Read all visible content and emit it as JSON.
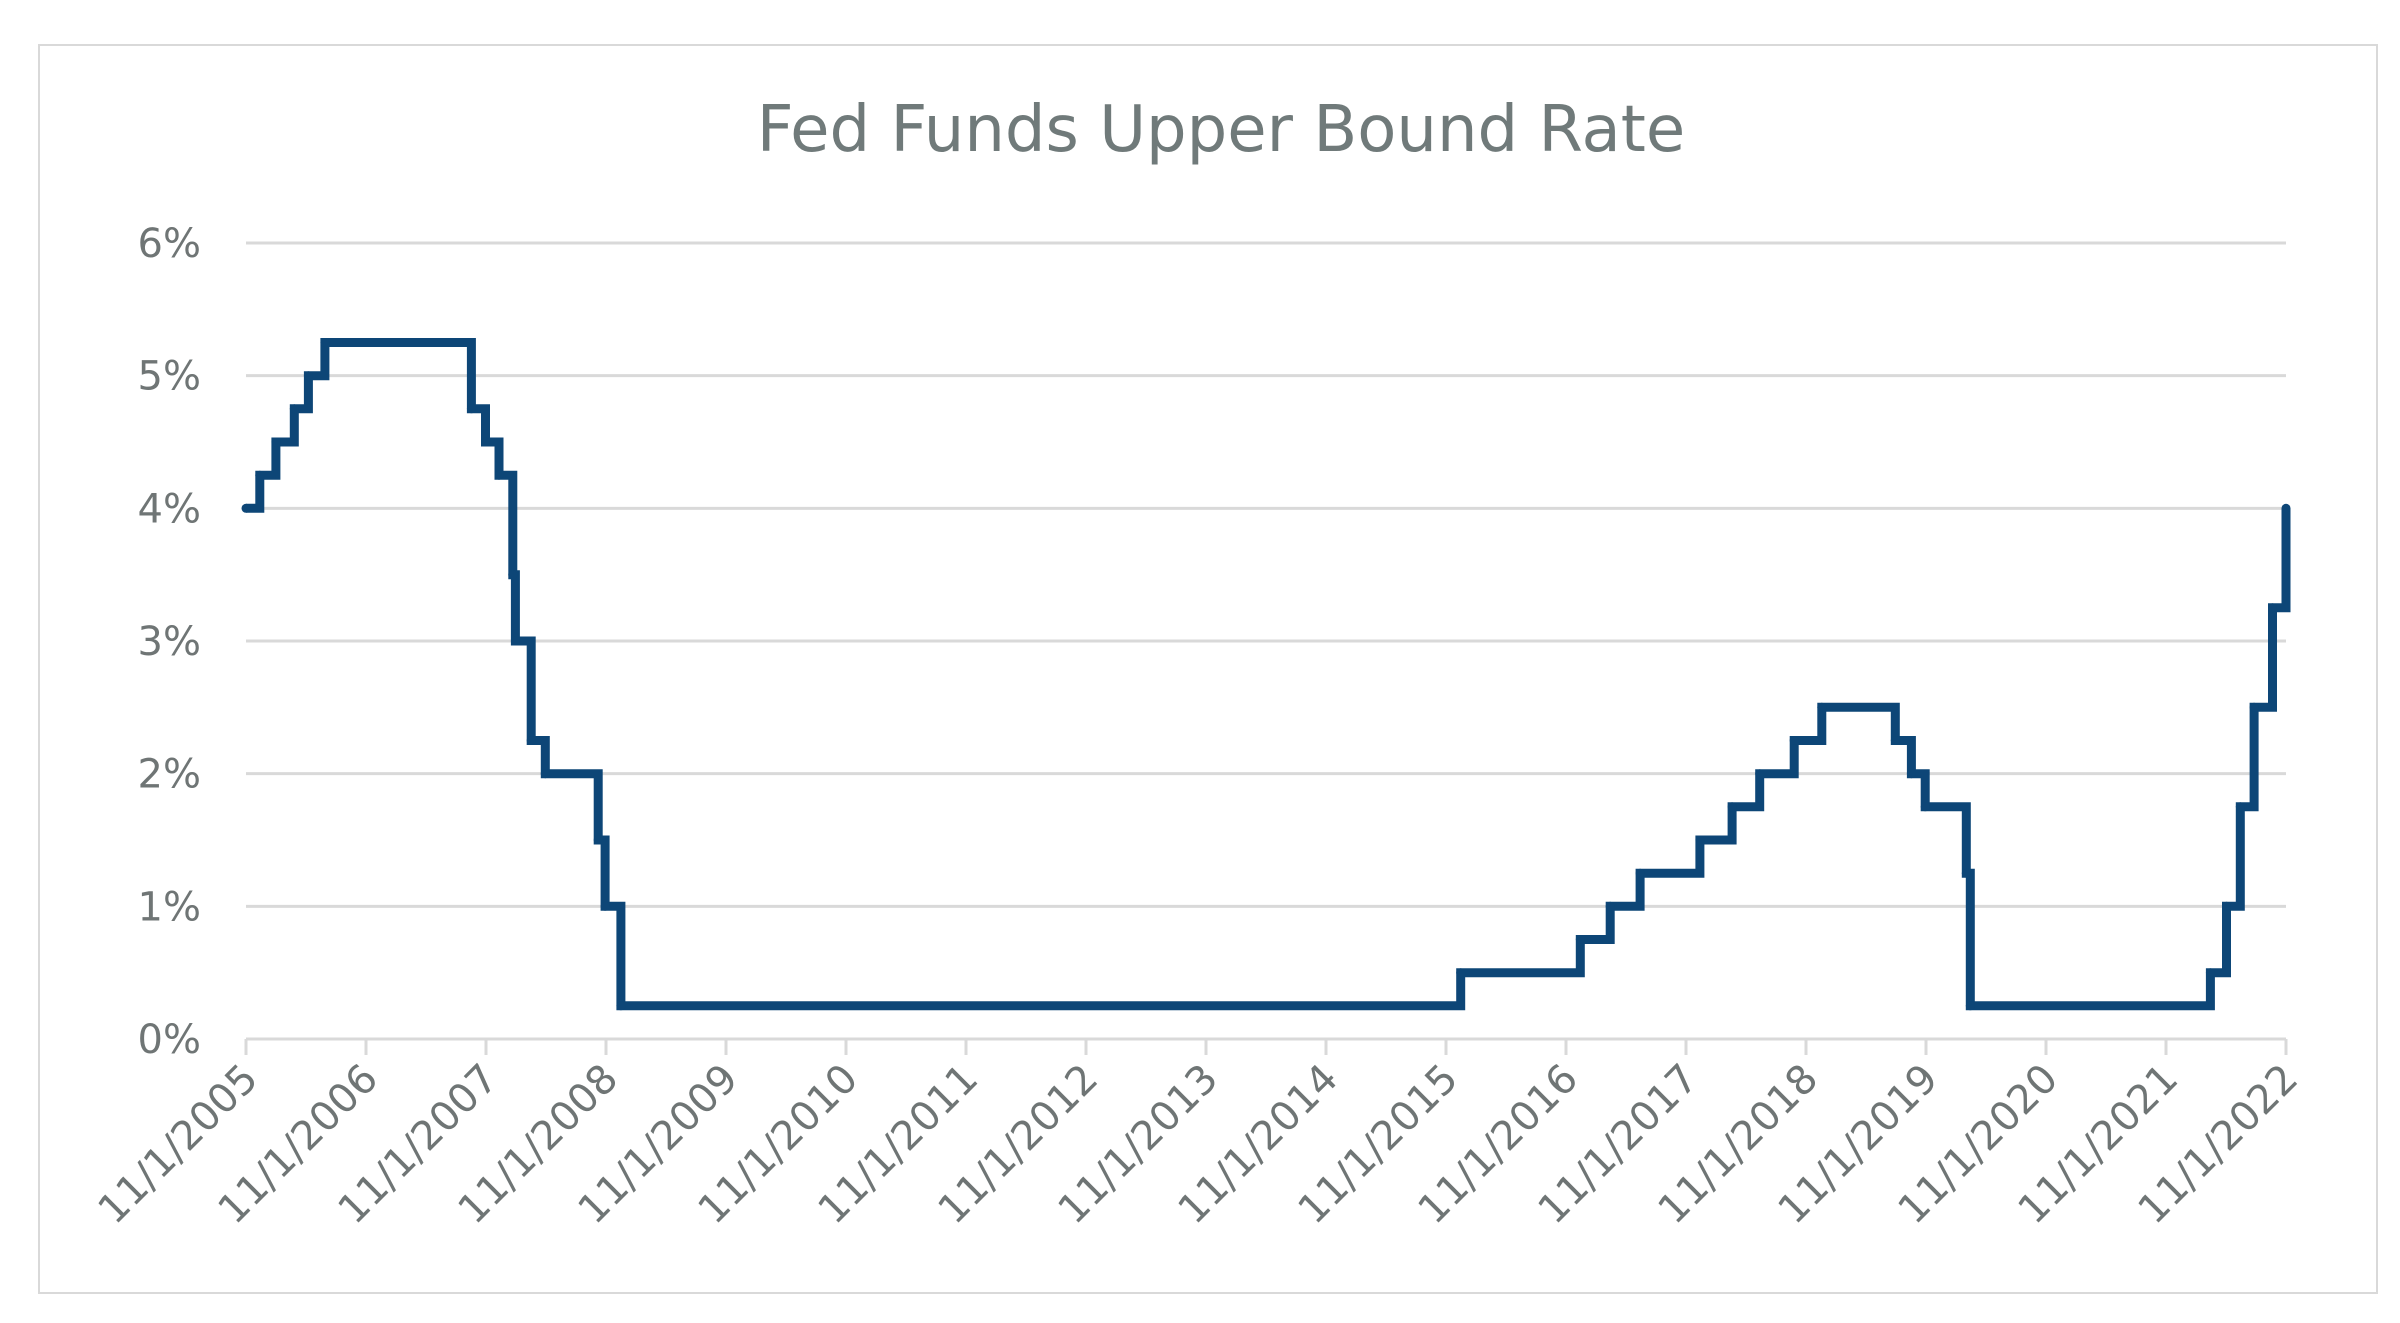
{
  "chart_data": {
    "type": "line",
    "step": true,
    "title": "Fed Funds Upper Bound Rate",
    "xlabel": "",
    "ylabel": "",
    "ylim": [
      0,
      6
    ],
    "xlim": [
      "2005-11-01",
      "2022-11-01"
    ],
    "y_ticks": [
      "0%",
      "1%",
      "2%",
      "3%",
      "4%",
      "5%",
      "6%"
    ],
    "x_ticks": [
      "11/1/2005",
      "11/1/2006",
      "11/1/2007",
      "11/1/2008",
      "11/1/2009",
      "11/1/2010",
      "11/1/2011",
      "11/1/2012",
      "11/1/2013",
      "11/1/2014",
      "11/1/2015",
      "11/1/2016",
      "11/1/2017",
      "11/1/2018",
      "11/1/2019",
      "11/1/2020",
      "11/1/2021",
      "11/1/2022"
    ],
    "grid": true,
    "legend": "none",
    "color": "#0d4677",
    "series": [
      {
        "points": [
          [
            "2005-11-01",
            4.0
          ],
          [
            "2005-12-13",
            4.25
          ],
          [
            "2006-01-31",
            4.5
          ],
          [
            "2006-03-28",
            4.75
          ],
          [
            "2006-05-10",
            5.0
          ],
          [
            "2006-06-29",
            5.25
          ],
          [
            "2007-09-18",
            4.75
          ],
          [
            "2007-10-31",
            4.5
          ],
          [
            "2007-12-11",
            4.25
          ],
          [
            "2008-01-22",
            3.5
          ],
          [
            "2008-01-30",
            3.0
          ],
          [
            "2008-03-18",
            2.25
          ],
          [
            "2008-04-30",
            2.0
          ],
          [
            "2008-10-08",
            1.5
          ],
          [
            "2008-10-29",
            1.0
          ],
          [
            "2008-12-16",
            0.25
          ],
          [
            "2015-12-16",
            0.5
          ],
          [
            "2016-12-14",
            0.75
          ],
          [
            "2017-03-15",
            1.0
          ],
          [
            "2017-06-14",
            1.25
          ],
          [
            "2017-12-13",
            1.5
          ],
          [
            "2018-03-21",
            1.75
          ],
          [
            "2018-06-13",
            2.0
          ],
          [
            "2018-09-26",
            2.25
          ],
          [
            "2018-12-19",
            2.5
          ],
          [
            "2019-07-31",
            2.25
          ],
          [
            "2019-09-18",
            2.0
          ],
          [
            "2019-10-30",
            1.75
          ],
          [
            "2020-03-03",
            1.25
          ],
          [
            "2020-03-15",
            0.25
          ],
          [
            "2022-03-16",
            0.5
          ],
          [
            "2022-05-04",
            1.0
          ],
          [
            "2022-06-15",
            1.75
          ],
          [
            "2022-07-27",
            2.5
          ],
          [
            "2022-09-21",
            3.25
          ],
          [
            "2022-11-01",
            4.0
          ]
        ]
      }
    ]
  }
}
